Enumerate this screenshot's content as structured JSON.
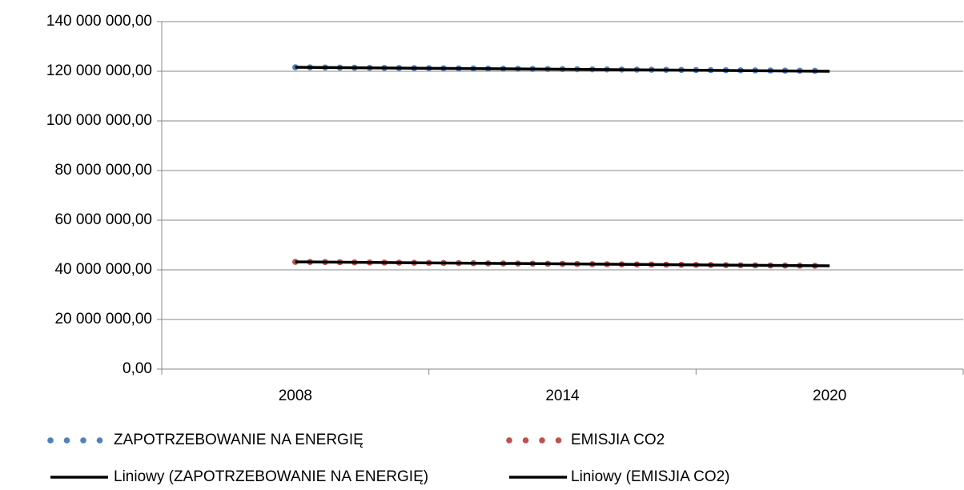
{
  "chart_data": {
    "type": "scatter",
    "series": [
      {
        "name": "ZAPOTRZEBOWANIE NA ENERGIĘ",
        "color": "#4f81bd",
        "kind": "points",
        "x": [
          2008,
          2008.33,
          2008.67,
          2009,
          2009.33,
          2009.67,
          2010,
          2010.33,
          2010.67,
          2011,
          2011.33,
          2011.67,
          2012,
          2012.33,
          2012.67,
          2013,
          2013.33,
          2013.67,
          2014,
          2014.33,
          2014.67,
          2015,
          2015.33,
          2015.67,
          2016,
          2016.33,
          2016.67,
          2017,
          2017.33,
          2017.67,
          2018,
          2018.33,
          2018.67,
          2019,
          2019.33,
          2019.67
        ],
        "values": [
          121600000,
          121560000,
          121520000,
          121480000,
          121440000,
          121400000,
          121360000,
          121320000,
          121280000,
          121240000,
          121200000,
          121160000,
          121120000,
          121080000,
          121040000,
          121000000,
          120960000,
          120920000,
          120880000,
          120840000,
          120800000,
          120760000,
          120720000,
          120680000,
          120640000,
          120600000,
          120560000,
          120520000,
          120480000,
          120440000,
          120400000,
          120360000,
          120320000,
          120280000,
          120240000,
          120200000
        ]
      },
      {
        "name": "EMISJIA CO2",
        "color": "#c0504d",
        "kind": "points",
        "x": [
          2008,
          2008.33,
          2008.67,
          2009,
          2009.33,
          2009.67,
          2010,
          2010.33,
          2010.67,
          2011,
          2011.33,
          2011.67,
          2012,
          2012.33,
          2012.67,
          2013,
          2013.33,
          2013.67,
          2014,
          2014.33,
          2014.67,
          2015,
          2015.33,
          2015.67,
          2016,
          2016.33,
          2016.67,
          2017,
          2017.33,
          2017.67,
          2018,
          2018.33,
          2018.67,
          2019,
          2019.33,
          2019.67
        ],
        "values": [
          43200000,
          43155000,
          43110000,
          43065000,
          43020000,
          42975000,
          42930000,
          42885000,
          42840000,
          42795000,
          42750000,
          42705000,
          42660000,
          42615000,
          42570000,
          42525000,
          42480000,
          42435000,
          42390000,
          42345000,
          42300000,
          42255000,
          42210000,
          42165000,
          42120000,
          42075000,
          42030000,
          41985000,
          41940000,
          41895000,
          41850000,
          41805000,
          41760000,
          41715000,
          41670000,
          41625000
        ]
      },
      {
        "name": "Liniowy (ZAPOTRZEBOWANIE NA ENERGIĘ)",
        "color": "#000000",
        "kind": "line",
        "x": [
          2008,
          2020
        ],
        "values": [
          121600000,
          120000000
        ]
      },
      {
        "name": "Liniowy (EMISJIA CO2)",
        "color": "#000000",
        "kind": "line",
        "x": [
          2008,
          2020
        ],
        "values": [
          43200000,
          41600000
        ]
      }
    ],
    "xlim": [
      2005,
      2023
    ],
    "xticks": [
      2008,
      2014,
      2020
    ],
    "xtick_marks": [
      2005,
      2011,
      2017,
      2023
    ],
    "ylim": [
      0,
      140000000
    ],
    "yticks": [
      {
        "value": 0,
        "label": "0,00"
      },
      {
        "value": 20000000,
        "label": "20 000 000,00"
      },
      {
        "value": 40000000,
        "label": "40 000 000,00"
      },
      {
        "value": 60000000,
        "label": "60 000 000,00"
      },
      {
        "value": 80000000,
        "label": "80 000 000,00"
      },
      {
        "value": 100000000,
        "label": "100 000 000,00"
      },
      {
        "value": 120000000,
        "label": "120 000 000,00"
      },
      {
        "value": 140000000,
        "label": "140 000 000,00"
      }
    ],
    "grid": true,
    "legend": "bottom"
  }
}
